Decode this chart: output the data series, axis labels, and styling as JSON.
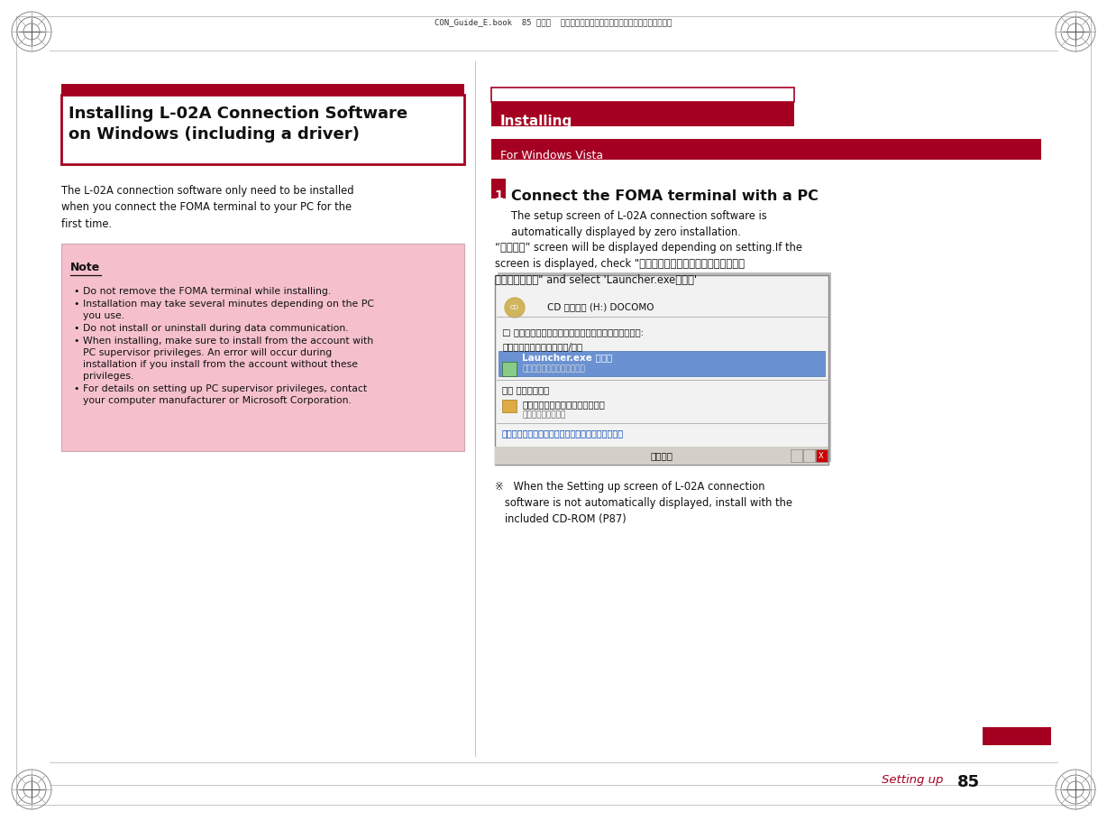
{
  "bg_color": "#ffffff",
  "dark_red": "#a50021",
  "light_pink": "#f5c0cc",
  "header_text": "CON_Guide_E.book  85 ページ  ２００８年１１月２６日　水曜日　午後６時４３分",
  "left_title": "Installing L-02A Connection Software\non Windows (including a driver)",
  "left_subtitle": "The L-02A connection software only need to be installed\nwhen you connect the FOMA terminal to your PC for the\nfirst time.",
  "note_title": "Note",
  "note_items": [
    "Do not remove the FOMA terminal while installing.",
    "Installation may take several minutes depending on the PC\nyou use.",
    "Do not install or uninstall during data communication.",
    "When installing, make sure to install from the account with\nPC supervisor privileges. An error will occur during\ninstallation if you install from the account without these\nprivileges.",
    "For details on setting up PC supervisor privileges, contact\nyour computer manufacturer or Microsoft Corporation."
  ],
  "right_section_header": "Installing",
  "right_sub_header": "For Windows Vista",
  "step_number": "1",
  "step_title": "Connect the FOMA terminal with a PC",
  "step_desc": "The setup screen of L-02A connection software is\nautomatically displayed by zero installation.",
  "step_note1": "“自動再生” screen will be displayed depending on setting.If the\nscreen is displayed, check \"ソフトウェアとゲームに対しては常に\n次の動作を行う\" and select 'Launcher.exeの実行'",
  "footnote_symbol": "※",
  "footnote_text": "   When the Setting up screen of L-02A connection\n   software is not automatically displayed, install with the\n   included CD-ROM (P87)",
  "footer_text_red": "Setting up",
  "footer_number": "85",
  "dialog_title_text": "自動再生",
  "dlg_cd_text": "CD ドライブ (H:) DOCOMO",
  "dlg_checkbox_text": "□ ソフトウェアとゲームに対しては常次の動作を行う:",
  "dlg_install_text": "プログラムのインストール/実行",
  "dlg_launcher_text": "Launcher.exe の実行",
  "dlg_launcher_sub": "発行元は確認されていません",
  "dlg_general_text": "全般 のオプション",
  "dlg_folder_text": "フォルダを開いてファイルを表示",
  "dlg_folder_sub": "エクスプローラ使用",
  "dlg_control_text": "コントロールパネルで自動再生の設定を変更します"
}
